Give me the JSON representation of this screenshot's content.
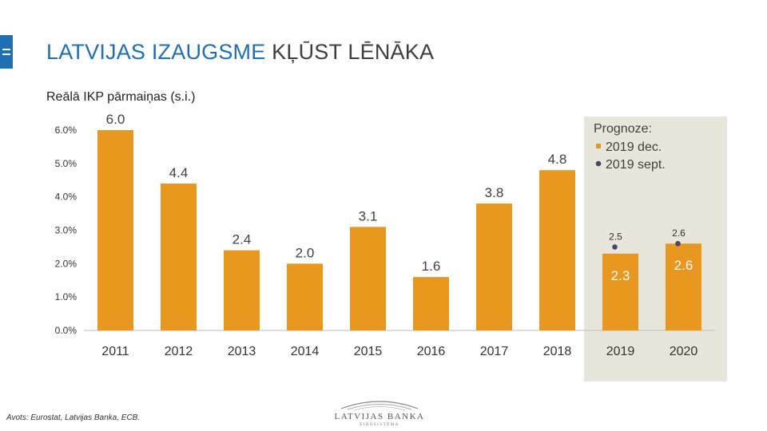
{
  "header": {
    "title_highlight": "LATVIJAS IZAUGSME",
    "title_rest": "KĻŪST LĒNĀKA"
  },
  "chart_subtitle": "Reālā IKP pārmaiņas (s.i.)",
  "source": "Avots: Eurostat,  Latvijas Banka, ECB.",
  "logo": {
    "name": "LATVIJAS BANKA",
    "sub": "EIROSISTĒMA"
  },
  "colors": {
    "title_accent": "#1f6fb5",
    "bar": "#e8971f",
    "dot": "#4f4468",
    "forecast_bg": "#e8e6da"
  },
  "chart_data": {
    "type": "bar",
    "categories": [
      "2011",
      "2012",
      "2013",
      "2014",
      "2015",
      "2016",
      "2017",
      "2018",
      "2019",
      "2020"
    ],
    "series": [
      {
        "name": "2019 dec.",
        "values": [
          6.0,
          4.4,
          2.4,
          2.0,
          3.1,
          1.6,
          3.8,
          4.8,
          2.3,
          2.6
        ],
        "labels": [
          "6.0",
          "4.4",
          "2.4",
          "2.0",
          "3.1",
          "1.6",
          "3.8",
          "4.8",
          "2.3",
          "2.6"
        ]
      },
      {
        "name": "2019 sept.",
        "type": "scatter",
        "values": [
          null,
          null,
          null,
          null,
          null,
          null,
          null,
          null,
          2.5,
          2.6
        ],
        "labels": [
          "",
          "",
          "",
          "",
          "",
          "",
          "",
          "",
          "2.5",
          "2.6"
        ]
      }
    ],
    "forecast_categories": [
      "2019",
      "2020"
    ],
    "legend_title": "Prognoze:",
    "legend_position": "top-right (inside forecast region)",
    "ylim": [
      0,
      6.5
    ],
    "yticks": [
      0,
      1,
      2,
      3,
      4,
      5,
      6
    ],
    "ytick_labels": [
      "0.0%",
      "1.0%",
      "2.0%",
      "3.0%",
      "4.0%",
      "5.0%",
      "6.0%"
    ],
    "grid": false
  }
}
